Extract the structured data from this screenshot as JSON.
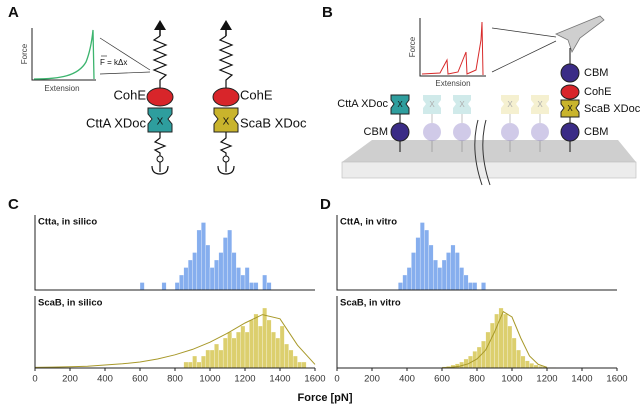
{
  "panel_a": {
    "letter": "A",
    "inset": {
      "y_label": "Force",
      "x_label": "Extension"
    },
    "equation": "F = kΔx",
    "labels": [
      "CohE",
      "CttA XDoc",
      "CohE",
      "ScaB XDoc"
    ],
    "module_label": "X"
  },
  "panel_b": {
    "letter": "B",
    "inset": {
      "y_label": "Force",
      "x_label": "Extension"
    },
    "left_labels": [
      "CttA XDoc",
      "CBM"
    ],
    "right_labels": [
      "CBM",
      "CohE",
      "ScaB XDoc",
      "CBM"
    ],
    "module_label": "X"
  },
  "panel_c": "C",
  "panel_d": "D",
  "axis_label": "Force [pN]",
  "chart_data": [
    {
      "type": "histogram",
      "title": "Ctta, in silico",
      "color": "#86aeee",
      "xlim": [
        0,
        1600
      ],
      "ylim": [
        0,
        10
      ],
      "bins": [
        600,
        625,
        650,
        675,
        700,
        725,
        750,
        775,
        800,
        825,
        850,
        875,
        900,
        925,
        950,
        975,
        1000,
        1025,
        1050,
        1075,
        1100,
        1125,
        1150,
        1175,
        1200,
        1225,
        1250,
        1275,
        1300,
        1325,
        1350
      ],
      "counts": [
        1,
        0,
        0,
        0,
        0,
        1,
        0,
        0,
        1,
        2,
        3,
        4,
        5,
        8,
        9,
        6,
        3,
        4,
        5,
        7,
        8,
        5,
        3,
        2,
        3,
        1,
        1,
        0,
        2,
        1
      ]
    },
    {
      "type": "histogram",
      "title": "ScaB, in silico",
      "color": "#dccf6e",
      "line_color": "#a8992a",
      "xlim": [
        0,
        1600
      ],
      "ylim": [
        0,
        12
      ],
      "xticks": [
        0,
        200,
        400,
        600,
        800,
        1000,
        1200,
        1400,
        1600
      ],
      "bins": [
        850,
        875,
        900,
        925,
        950,
        975,
        1000,
        1025,
        1050,
        1075,
        1100,
        1125,
        1150,
        1175,
        1200,
        1225,
        1250,
        1275,
        1300,
        1325,
        1350,
        1375,
        1400,
        1425,
        1450,
        1475,
        1500,
        1525,
        1550
      ],
      "counts": [
        1,
        1,
        2,
        1,
        2,
        3,
        3,
        4,
        3,
        5,
        6,
        5,
        6,
        7,
        6,
        8,
        9,
        7,
        10,
        8,
        6,
        5,
        7,
        4,
        3,
        2,
        1,
        1
      ],
      "fit": {
        "x": [
          0,
          100,
          200,
          300,
          400,
          500,
          600,
          700,
          800,
          900,
          1000,
          1100,
          1200,
          1300,
          1400,
          1500,
          1600
        ],
        "y": [
          0.1,
          0.15,
          0.2,
          0.3,
          0.5,
          0.7,
          1.0,
          1.5,
          2.2,
          3.1,
          4.3,
          5.8,
          7.5,
          8.9,
          8.2,
          3.8,
          0.6
        ]
      }
    },
    {
      "type": "histogram",
      "title": "CttA, in vitro",
      "color": "#86aeee",
      "xlim": [
        0,
        1600
      ],
      "ylim": [
        0,
        10
      ],
      "bins": [
        350,
        375,
        400,
        425,
        450,
        475,
        500,
        525,
        550,
        575,
        600,
        625,
        650,
        675,
        700,
        725,
        750,
        775,
        800,
        825,
        850
      ],
      "counts": [
        1,
        2,
        3,
        5,
        7,
        9,
        8,
        6,
        4,
        3,
        4,
        5,
        6,
        5,
        3,
        2,
        1,
        1,
        0,
        1
      ]
    },
    {
      "type": "histogram",
      "title": "ScaB, in vitro",
      "color": "#dccf6e",
      "line_color": "#a8992a",
      "xlim": [
        0,
        1600
      ],
      "ylim": [
        0,
        12
      ],
      "xticks": [
        0,
        200,
        400,
        600,
        800,
        1000,
        1200,
        1400,
        1600
      ],
      "bins": [
        600,
        625,
        650,
        675,
        700,
        725,
        750,
        775,
        800,
        825,
        850,
        875,
        900,
        925,
        950,
        975,
        1000,
        1025,
        1050,
        1075,
        1100,
        1125,
        1150,
        1175,
        1200,
        1225,
        1250
      ],
      "counts": [
        0.2,
        0.3,
        0.5,
        0.7,
        1,
        1.5,
        2,
        2.8,
        3.5,
        4.5,
        6,
        7.5,
        9,
        10,
        9,
        7,
        5,
        3,
        2,
        1.2,
        0.8,
        0.5,
        0.3,
        0.2,
        0.1,
        0.1
      ],
      "fit": {
        "x": [
          600,
          650,
          700,
          750,
          800,
          850,
          900,
          950,
          1000,
          1050,
          1100,
          1150,
          1200
        ],
        "y": [
          0.05,
          0.1,
          0.3,
          0.7,
          1.5,
          3.0,
          6.0,
          9.4,
          8.5,
          5.0,
          2.0,
          0.6,
          0.1
        ]
      }
    }
  ]
}
